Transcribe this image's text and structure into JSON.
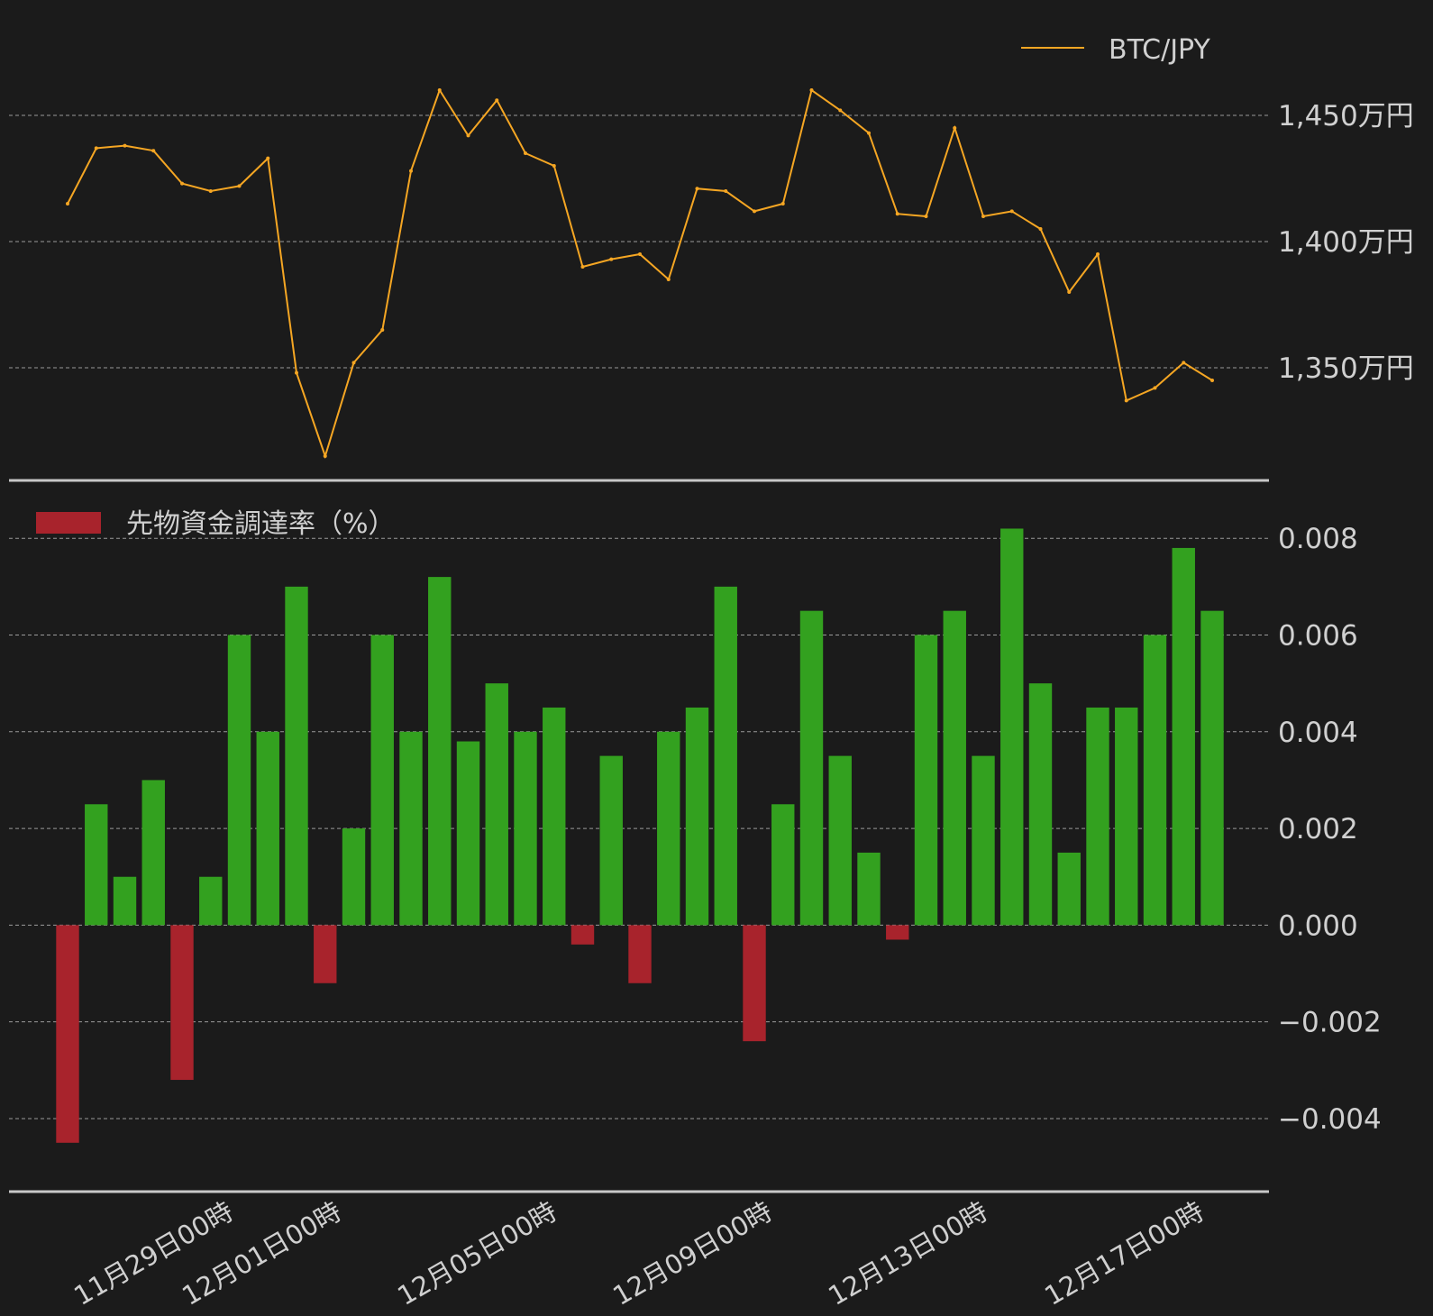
{
  "colors": {
    "background": "#1b1b1b",
    "price_line": "#f5a623",
    "funding_positive": "#33a11f",
    "funding_negative": "#a8232c",
    "grid": "#9a9a9a",
    "text": "#d0d0d0",
    "separator": "#c8c8c8"
  },
  "chart_data": [
    {
      "type": "line",
      "legend": {
        "label": "BTC/JPY",
        "position": "top-right"
      },
      "y_tick_labels": [
        "1,350万円",
        "1,400万円",
        "1,450万円"
      ],
      "y_ticks": [
        13500000,
        14000000,
        14500000
      ],
      "ylim": [
        13100000,
        14850000
      ],
      "x_start": "11月27日06時",
      "x_end": "12月17日06時",
      "grid": true,
      "series": [
        {
          "name": "BTC/JPY",
          "x": [
            "11月27日06時",
            "11月27日18時",
            "11月28日06時",
            "11月28日18時",
            "11月29日06時",
            "11月29日18時",
            "11月30日06時",
            "11月30日18時",
            "12月01日06時",
            "12月01日18時",
            "12月02日06時",
            "12月02日18時",
            "12月03日06時",
            "12月03日18時",
            "12月04日06時",
            "12月04日18時",
            "12月05日06時",
            "12月05日18時",
            "12月06日06時",
            "12月06日18時",
            "12月07日06時",
            "12月07日18時",
            "12月08日06時",
            "12月08日18時",
            "12月09日06時",
            "12月09日18時",
            "12月10日06時",
            "12月10日18時",
            "12月11日06時",
            "12月11日18時",
            "12月12日06時",
            "12月12日18時",
            "12月13日06時",
            "12月13日18時",
            "12月14日06時",
            "12月14日18時",
            "12月15日06時",
            "12月15日18時",
            "12月16日06時",
            "12月16日18時",
            "12月17日06時"
          ],
          "values": [
            14150000,
            14370000,
            14380000,
            14360000,
            14230000,
            14200000,
            14220000,
            14330000,
            13480000,
            13150000,
            13520000,
            13650000,
            14280000,
            14600000,
            14420000,
            14560000,
            14350000,
            14300000,
            13900000,
            13930000,
            13950000,
            13850000,
            14210000,
            14200000,
            14120000,
            14150000,
            14600000,
            14520000,
            14430000,
            14110000,
            14100000,
            14450000,
            14100000,
            14120000,
            14050000,
            13800000,
            13950000,
            13370000,
            13420000,
            13520000,
            13450000
          ]
        }
      ]
    },
    {
      "type": "bar",
      "legend": {
        "label": "先物資金調達率（%）",
        "position": "top-left"
      },
      "y_tick_labels": [
        "−0.004",
        "−0.002",
        "0.000",
        "0.002",
        "0.004",
        "0.006",
        "0.008"
      ],
      "y_ticks": [
        -0.004,
        -0.002,
        0.0,
        0.002,
        0.004,
        0.006,
        0.008
      ],
      "ylim": [
        -0.0051,
        0.0086
      ],
      "x_tick_labels": [
        "11月29日00時",
        "12月01日00時",
        "12月05日00時",
        "12月09日00時",
        "12月13日00時",
        "12月17日00時"
      ],
      "grid": true,
      "series": [
        {
          "name": "先物資金調達率（%）",
          "x": [
            "11月27日06時",
            "11月27日18時",
            "11月28日06時",
            "11月28日18時",
            "11月29日06時",
            "11月29日18時",
            "11月30日06時",
            "11月30日18時",
            "12月01日06時",
            "12月01日18時",
            "12月02日06時",
            "12月02日18時",
            "12月03日06時",
            "12月03日18時",
            "12月04日06時",
            "12月04日18時",
            "12月05日06時",
            "12月05日18時",
            "12月06日06時",
            "12月06日18時",
            "12月07日06時",
            "12月07日18時",
            "12月08日06時",
            "12月08日18時",
            "12月09日06時",
            "12月09日18時",
            "12月10日06時",
            "12月10日18時",
            "12月11日06時",
            "12月11日18時",
            "12月12日06時",
            "12月12日18時",
            "12月13日06時",
            "12月13日18時",
            "12月14日06時",
            "12月14日18時",
            "12月15日06時",
            "12月15日18時",
            "12月16日06時",
            "12月16日18時",
            "12月17日06時"
          ],
          "values": [
            -0.0045,
            0.0025,
            0.001,
            0.003,
            -0.0032,
            0.001,
            0.006,
            0.004,
            0.007,
            -0.0012,
            0.002,
            0.006,
            0.004,
            0.0072,
            0.0038,
            0.005,
            0.004,
            0.0045,
            -0.0004,
            0.0035,
            -0.0012,
            0.004,
            0.0045,
            0.007,
            -0.0024,
            0.0025,
            0.0065,
            0.0035,
            0.0015,
            -0.0003,
            0.006,
            0.0065,
            0.0035,
            0.0082,
            0.005,
            0.0015,
            0.0045,
            0.0045,
            0.006,
            0.0078,
            0.0065
          ]
        }
      ]
    }
  ]
}
